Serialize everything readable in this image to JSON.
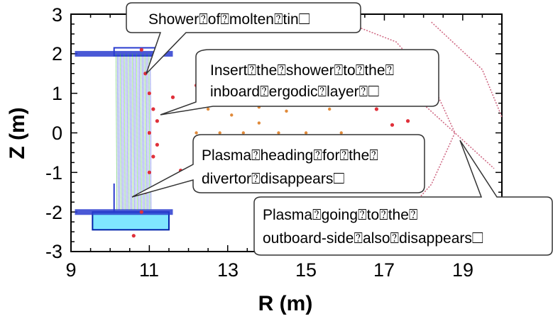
{
  "chart_data": {
    "type": "scatter",
    "title": "",
    "xlabel": "R (m)",
    "ylabel": "Z (m)",
    "xlim": [
      9,
      20
    ],
    "ylim": [
      -3,
      3
    ],
    "x_ticks": [
      "9",
      "11",
      "13",
      "15",
      "17",
      "19"
    ],
    "y_ticks": [
      "3",
      "2",
      "1",
      "0",
      "-1",
      "-2",
      "-3"
    ],
    "grid": false,
    "legend": "none",
    "series": [
      {
        "color": "#e0303a",
        "points": [
          [
            10.6,
            2.6
          ],
          [
            10.8,
            2.1
          ],
          [
            10.9,
            1.5
          ],
          [
            11.0,
            1.0
          ],
          [
            11.1,
            0.6
          ],
          [
            11.2,
            0.3
          ],
          [
            11.0,
            0.0
          ],
          [
            11.2,
            -0.3
          ],
          [
            11.1,
            -0.6
          ],
          [
            11.0,
            -1.0
          ],
          [
            10.9,
            -1.5
          ],
          [
            10.8,
            -2.0
          ],
          [
            10.6,
            -2.6
          ],
          [
            11.6,
            0.9
          ],
          [
            12.2,
            1.2
          ],
          [
            13.0,
            1.3
          ],
          [
            14.0,
            1.3
          ],
          [
            15.0,
            1.25
          ],
          [
            16.0,
            1.1
          ],
          [
            16.8,
            0.6
          ],
          [
            17.2,
            0.2
          ],
          [
            17.3,
            -0.1
          ],
          [
            17.1,
            -0.5
          ],
          [
            16.5,
            -0.9
          ],
          [
            15.5,
            -1.15
          ],
          [
            14.5,
            -1.25
          ],
          [
            13.5,
            -1.3
          ],
          [
            12.5,
            -1.2
          ],
          [
            11.8,
            -0.95
          ],
          [
            17.6,
            0.3
          ],
          [
            17.8,
            -0.1
          ],
          [
            17.5,
            -0.6
          ]
        ]
      },
      {
        "color": "#e08a3a",
        "points": [
          [
            12.2,
            0.0
          ],
          [
            12.5,
            0.6
          ],
          [
            13.2,
            0.95
          ],
          [
            14.0,
            1.05
          ],
          [
            14.8,
            0.95
          ],
          [
            15.6,
            0.6
          ],
          [
            15.9,
            0.0
          ],
          [
            15.6,
            -0.6
          ],
          [
            14.8,
            -0.95
          ],
          [
            14.0,
            -1.05
          ],
          [
            13.2,
            -0.95
          ],
          [
            12.5,
            -0.6
          ],
          [
            12.8,
            0.0
          ],
          [
            13.1,
            0.45
          ],
          [
            13.8,
            0.65
          ],
          [
            14.5,
            0.55
          ],
          [
            15.0,
            0.0
          ],
          [
            14.5,
            -0.55
          ],
          [
            13.8,
            -0.65
          ],
          [
            13.1,
            -0.45
          ],
          [
            13.4,
            0.0
          ],
          [
            13.8,
            0.25
          ],
          [
            14.3,
            0.0
          ],
          [
            13.8,
            -0.25
          ]
        ]
      }
    ],
    "separatrix": {
      "color": "#d06c86",
      "upper": [
        [
          16.0,
          2.8
        ],
        [
          17.3,
          2.3
        ],
        [
          18.2,
          1.3
        ],
        [
          18.8,
          0.0
        ]
      ],
      "lower": [
        [
          18.8,
          0.0
        ],
        [
          18.2,
          -1.3
        ],
        [
          17.3,
          -2.3
        ],
        [
          16.0,
          -2.8
        ]
      ],
      "crossing": [
        [
          17.8,
          0.9
        ],
        [
          18.8,
          0.0
        ],
        [
          19.8,
          -0.9
        ]
      ],
      "outer": [
        [
          18.2,
          2.8
        ],
        [
          19.5,
          1.6
        ],
        [
          20.0,
          0.4
        ]
      ]
    },
    "annotations": [
      "Shower⍰of⍰molten⍰tin☐",
      "Insert⍰the⍰shower⍰to⍰the⍰",
      "inboard⍰ergodic⍰layer⍰☐",
      "Plasma⍰heading⍰for⍰the⍰",
      "divertor⍰disappears☐",
      "Plasma⍰going⍰to⍰the⍰",
      "outboard-side⍰also⍰disappears☐"
    ]
  },
  "colors": {
    "shower_lines": "#3a4de0",
    "shower_lines_green": "#38b838",
    "tin_pool": "#7fe6ff",
    "tin_pool_border": "#0022aa",
    "pipe": "#2a3ccf"
  }
}
